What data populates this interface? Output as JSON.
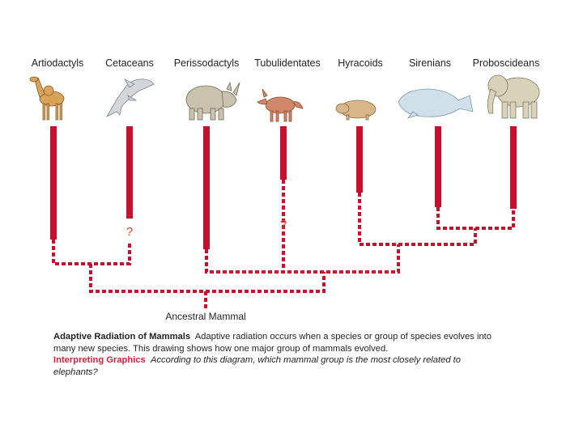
{
  "groups": [
    {
      "label": "Artiodactyls",
      "icon": "camel-icon",
      "question_mark": false
    },
    {
      "label": "Cetaceans",
      "icon": "dolphin-icon",
      "question_mark": true
    },
    {
      "label": "Perissodactyls",
      "icon": "rhinoceros-icon",
      "question_mark": false
    },
    {
      "label": "Tubulidentates",
      "icon": "aardvark-icon",
      "question_mark": true
    },
    {
      "label": "Hyracoids",
      "icon": "hyrax-icon",
      "question_mark": false
    },
    {
      "label": "Sirenians",
      "icon": "manatee-icon",
      "question_mark": false
    },
    {
      "label": "Proboscideans",
      "icon": "elephant-icon",
      "question_mark": false
    }
  ],
  "question_mark_symbol": "?",
  "ancestor_label": "Ancestral Mammal",
  "caption": {
    "title": "Adaptive Radiation of Mammals",
    "text": "Adaptive radiation occurs when a species or group of species evolves into many new species. This drawing shows how one major group of mammals evolved.",
    "question_title": "Interpreting Graphics",
    "question_text": "According to this diagram, which mammal group is the most closely related to elephants?"
  },
  "colors": {
    "lineage": "#c8102e",
    "question_mark": "#e0452a",
    "text": "#231f20"
  }
}
